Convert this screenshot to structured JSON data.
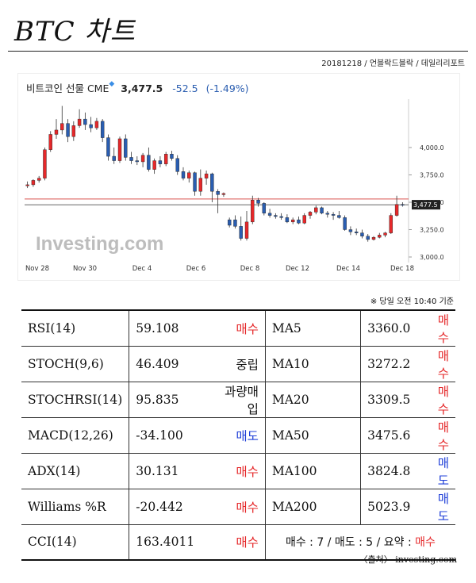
{
  "title": "BTC 차트",
  "meta": "20181218 / 언블락드블락 / 데일리리포트",
  "quote": {
    "name": "비트코인 선물 CME",
    "price": "3,477.5",
    "change": "-52.5",
    "change_pct": "(-1.49%)"
  },
  "watermark": "Investing.com",
  "note": "※ 당일 오전 10:40 기준",
  "source": "〈출처〉 investing.com",
  "colors": {
    "up": "#e5282a",
    "down": "#2a5db0",
    "buy": "#e5282a",
    "sell": "#2040d8"
  },
  "chart_data": {
    "type": "candlestick",
    "ylim": [
      3000,
      4450
    ],
    "yticks": [
      "4,000.0",
      "3,750.0",
      "3,500.0",
      "3,250.0",
      "3,000.0"
    ],
    "xticks": [
      "Nov 28",
      "Nov 30",
      "Dec 4",
      "Dec 6",
      "Dec 8",
      "Dec 12",
      "Dec 14",
      "Dec 18"
    ],
    "last_price_label": "3,477.5",
    "last_price": 3477.5,
    "ref_line": 3530,
    "candles": [
      {
        "o": 3650,
        "h": 3690,
        "l": 3630,
        "c": 3660
      },
      {
        "o": 3660,
        "h": 3710,
        "l": 3640,
        "c": 3700
      },
      {
        "o": 3700,
        "h": 3740,
        "l": 3680,
        "c": 3720
      },
      {
        "o": 3720,
        "h": 4000,
        "l": 3700,
        "c": 3980
      },
      {
        "o": 3980,
        "h": 4150,
        "l": 3960,
        "c": 4120
      },
      {
        "o": 4120,
        "h": 4260,
        "l": 4080,
        "c": 4160
      },
      {
        "o": 4160,
        "h": 4380,
        "l": 4120,
        "c": 4220
      },
      {
        "o": 4220,
        "h": 4260,
        "l": 4050,
        "c": 4100
      },
      {
        "o": 4100,
        "h": 4240,
        "l": 4060,
        "c": 4200
      },
      {
        "o": 4200,
        "h": 4350,
        "l": 4180,
        "c": 4260
      },
      {
        "o": 4260,
        "h": 4320,
        "l": 4160,
        "c": 4210
      },
      {
        "o": 4210,
        "h": 4280,
        "l": 4140,
        "c": 4180
      },
      {
        "o": 4180,
        "h": 4270,
        "l": 4160,
        "c": 4240
      },
      {
        "o": 4240,
        "h": 4260,
        "l": 4050,
        "c": 4090
      },
      {
        "o": 4090,
        "h": 4120,
        "l": 3880,
        "c": 3920
      },
      {
        "o": 3920,
        "h": 4000,
        "l": 3850,
        "c": 3880
      },
      {
        "o": 3880,
        "h": 4100,
        "l": 3860,
        "c": 4080
      },
      {
        "o": 4080,
        "h": 4120,
        "l": 3880,
        "c": 3910
      },
      {
        "o": 3910,
        "h": 3960,
        "l": 3850,
        "c": 3880
      },
      {
        "o": 3880,
        "h": 3920,
        "l": 3840,
        "c": 3870
      },
      {
        "o": 3870,
        "h": 3950,
        "l": 3820,
        "c": 3930
      },
      {
        "o": 3930,
        "h": 4000,
        "l": 3780,
        "c": 3800
      },
      {
        "o": 3800,
        "h": 3900,
        "l": 3760,
        "c": 3880
      },
      {
        "o": 3880,
        "h": 3920,
        "l": 3820,
        "c": 3850
      },
      {
        "o": 3850,
        "h": 3960,
        "l": 3830,
        "c": 3940
      },
      {
        "o": 3940,
        "h": 3970,
        "l": 3880,
        "c": 3900
      },
      {
        "o": 3900,
        "h": 3930,
        "l": 3750,
        "c": 3780
      },
      {
        "o": 3780,
        "h": 3820,
        "l": 3700,
        "c": 3720
      },
      {
        "o": 3720,
        "h": 3790,
        "l": 3680,
        "c": 3770
      },
      {
        "o": 3770,
        "h": 3780,
        "l": 3560,
        "c": 3600
      },
      {
        "o": 3600,
        "h": 3800,
        "l": 3560,
        "c": 3720
      },
      {
        "o": 3720,
        "h": 3790,
        "l": 3660,
        "c": 3760
      },
      {
        "o": 3760,
        "h": 3770,
        "l": 3500,
        "c": 3600
      },
      {
        "o": 3600,
        "h": 3620,
        "l": 3400,
        "c": 3570
      },
      {
        "o": 3570,
        "h": 3590,
        "l": 3550,
        "c": 3580
      },
      {
        "o": 3340,
        "h": 3360,
        "l": 3270,
        "c": 3290
      },
      {
        "o": 3340,
        "h": 3380,
        "l": 3260,
        "c": 3280
      },
      {
        "o": 3280,
        "h": 3370,
        "l": 3150,
        "c": 3170
      },
      {
        "o": 3170,
        "h": 3420,
        "l": 3150,
        "c": 3320
      },
      {
        "o": 3320,
        "h": 3560,
        "l": 3300,
        "c": 3520
      },
      {
        "o": 3520,
        "h": 3540,
        "l": 3460,
        "c": 3490
      },
      {
        "o": 3490,
        "h": 3500,
        "l": 3380,
        "c": 3400
      },
      {
        "o": 3400,
        "h": 3440,
        "l": 3360,
        "c": 3380
      },
      {
        "o": 3380,
        "h": 3400,
        "l": 3350,
        "c": 3370
      },
      {
        "o": 3370,
        "h": 3400,
        "l": 3340,
        "c": 3360
      },
      {
        "o": 3360,
        "h": 3390,
        "l": 3310,
        "c": 3320
      },
      {
        "o": 3320,
        "h": 3360,
        "l": 3300,
        "c": 3340
      },
      {
        "o": 3340,
        "h": 3370,
        "l": 3300,
        "c": 3310
      },
      {
        "o": 3310,
        "h": 3400,
        "l": 3300,
        "c": 3380
      },
      {
        "o": 3380,
        "h": 3420,
        "l": 3350,
        "c": 3410
      },
      {
        "o": 3410,
        "h": 3470,
        "l": 3390,
        "c": 3450
      },
      {
        "o": 3450,
        "h": 3460,
        "l": 3390,
        "c": 3400
      },
      {
        "o": 3400,
        "h": 3420,
        "l": 3360,
        "c": 3390
      },
      {
        "o": 3390,
        "h": 3410,
        "l": 3340,
        "c": 3380
      },
      {
        "o": 3380,
        "h": 3420,
        "l": 3350,
        "c": 3360
      },
      {
        "o": 3360,
        "h": 3380,
        "l": 3240,
        "c": 3250
      },
      {
        "o": 3250,
        "h": 3280,
        "l": 3200,
        "c": 3230
      },
      {
        "o": 3230,
        "h": 3260,
        "l": 3200,
        "c": 3220
      },
      {
        "o": 3220,
        "h": 3250,
        "l": 3170,
        "c": 3190
      },
      {
        "o": 3190,
        "h": 3210,
        "l": 3140,
        "c": 3160
      },
      {
        "o": 3160,
        "h": 3190,
        "l": 3150,
        "c": 3180
      },
      {
        "o": 3180,
        "h": 3220,
        "l": 3170,
        "c": 3200
      },
      {
        "o": 3200,
        "h": 3230,
        "l": 3180,
        "c": 3220
      },
      {
        "o": 3220,
        "h": 3400,
        "l": 3210,
        "c": 3380
      },
      {
        "o": 3380,
        "h": 3560,
        "l": 3370,
        "c": 3480
      },
      {
        "o": 3480,
        "h": 3500,
        "l": 3460,
        "c": 3477.5
      }
    ]
  },
  "indicators": [
    {
      "left_name": "RSI(14)",
      "left_value": "59.108",
      "left_signal": "매수",
      "left_type": "buy",
      "right_name": "MA5",
      "right_value": "3360.0",
      "right_signal": "매수",
      "right_type": "buy"
    },
    {
      "left_name": "STOCH(9,6)",
      "left_value": "46.409",
      "left_signal": "중립",
      "left_type": "neutral",
      "right_name": "MA10",
      "right_value": "3272.2",
      "right_signal": "매수",
      "right_type": "buy"
    },
    {
      "left_name": "STOCHRSI(14)",
      "left_value": "95.835",
      "left_signal": "과량매입",
      "left_type": "neutral",
      "right_name": "MA20",
      "right_value": "3309.5",
      "right_signal": "매수",
      "right_type": "buy"
    },
    {
      "left_name": "MACD(12,26)",
      "left_value": "-34.100",
      "left_signal": "매도",
      "left_type": "sell",
      "right_name": "MA50",
      "right_value": "3475.6",
      "right_signal": "매수",
      "right_type": "buy"
    },
    {
      "left_name": "ADX(14)",
      "left_value": "30.131",
      "left_signal": "매수",
      "left_type": "buy",
      "right_name": "MA100",
      "right_value": "3824.8",
      "right_signal": "매도",
      "right_type": "sell"
    },
    {
      "left_name": "Williams %R",
      "left_value": "-20.442",
      "left_signal": "매수",
      "left_type": "buy",
      "right_name": "MA200",
      "right_value": "5023.9",
      "right_signal": "매도",
      "right_type": "sell"
    }
  ],
  "last_row": {
    "name": "CCI(14)",
    "value": "163.4011",
    "signal": "매수",
    "type": "buy",
    "summary_prefix": "매수 : 7 / 매도 : 5 / 요약 : ",
    "summary_result": "매수"
  }
}
